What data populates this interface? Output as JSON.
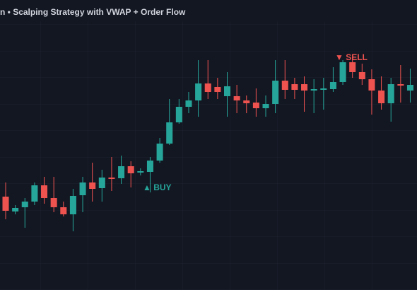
{
  "chart_data": {
    "type": "candlestick",
    "title": "n • Scalping Strategy with VWAP + Order Flow",
    "annotations": [
      "▲ BUY",
      "▼ SELL"
    ],
    "open": [
      132,
      111,
      117,
      125,
      148,
      130,
      117,
      107,
      134,
      152,
      144,
      159,
      158,
      175,
      166,
      167,
      183,
      207,
      237,
      259,
      268,
      292,
      287,
      274,
      274,
      268,
      265,
      257,
      263,
      296,
      291,
      291,
      282,
      283,
      284,
      294,
      322,
      308,
      298,
      282,
      264,
      291,
      282
    ],
    "high": [
      152,
      120,
      130,
      152,
      160,
      160,
      125,
      143,
      160,
      180,
      170,
      188,
      190,
      182,
      172,
      188,
      215,
      270,
      270,
      280,
      325,
      325,
      300,
      308,
      290,
      275,
      285,
      275,
      325,
      325,
      300,
      302,
      298,
      300,
      315,
      325,
      330,
      320,
      312,
      302,
      300,
      318,
      313
    ],
    "low": [
      100,
      107,
      88,
      120,
      122,
      110,
      104,
      83,
      110,
      125,
      125,
      140,
      150,
      145,
      162,
      138,
      180,
      205,
      235,
      250,
      245,
      270,
      270,
      245,
      250,
      250,
      245,
      245,
      250,
      270,
      270,
      252,
      250,
      255,
      280,
      290,
      300,
      290,
      248,
      255,
      238,
      265,
      265
    ],
    "close": [
      112,
      116,
      125,
      148,
      130,
      117,
      107,
      133,
      152,
      143,
      159,
      157,
      175,
      165,
      168,
      183,
      207,
      237,
      259,
      268,
      292,
      280,
      280,
      288,
      268,
      264,
      257,
      263,
      296,
      283,
      283,
      282,
      284,
      285,
      294,
      322,
      308,
      298,
      282,
      264,
      291,
      289,
      290
    ],
    "up_color": "#26a69a",
    "down_color": "#ef5350",
    "ylim": [
      0,
      410
    ]
  }
}
